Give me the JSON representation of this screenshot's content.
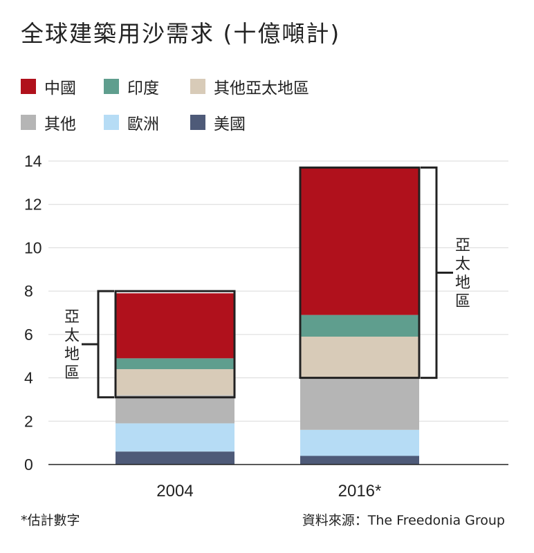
{
  "title": "全球建築用沙需求 (十億噸計)",
  "legend": {
    "row1": [
      {
        "label": "中國",
        "color": "#b0111c"
      },
      {
        "label": "印度",
        "color": "#5f9e8e"
      },
      {
        "label": "其他亞太地區",
        "color": "#d8cbb8"
      }
    ],
    "row2": [
      {
        "label": "其他",
        "color": "#b5b5b5"
      },
      {
        "label": "歐洲",
        "color": "#b6dcf5"
      },
      {
        "label": "美國",
        "color": "#4e5a78"
      }
    ]
  },
  "chart_data": {
    "type": "bar",
    "stacked": true,
    "categories": [
      "2004",
      "2016*"
    ],
    "series": [
      {
        "name": "美國",
        "color": "#4e5a78",
        "values": [
          0.6,
          0.4
        ]
      },
      {
        "name": "歐洲",
        "color": "#b6dcf5",
        "values": [
          1.3,
          1.2
        ]
      },
      {
        "name": "其他",
        "color": "#b5b5b5",
        "values": [
          1.3,
          2.4
        ]
      },
      {
        "name": "其他亞太地區",
        "color": "#d8cbb8",
        "values": [
          1.2,
          1.9
        ]
      },
      {
        "name": "印度",
        "color": "#5f9e8e",
        "values": [
          0.5,
          1.0
        ]
      },
      {
        "name": "中國",
        "color": "#b0111c",
        "values": [
          3.0,
          6.8
        ]
      }
    ],
    "ylim": [
      0,
      14
    ],
    "yticks": [
      "0",
      "2",
      "4",
      "6",
      "8",
      "10",
      "12",
      "14"
    ],
    "grid": true,
    "annotations": [
      {
        "text": "亞太地區",
        "category": "2004",
        "side": "left",
        "from": 3.1,
        "to": 8.0
      },
      {
        "text": "亞太地區",
        "category": "2016*",
        "side": "right",
        "from": 4.0,
        "to": 13.7
      }
    ]
  },
  "footnote": "*估計數字",
  "source": "資料來源：The Freedonia Group"
}
